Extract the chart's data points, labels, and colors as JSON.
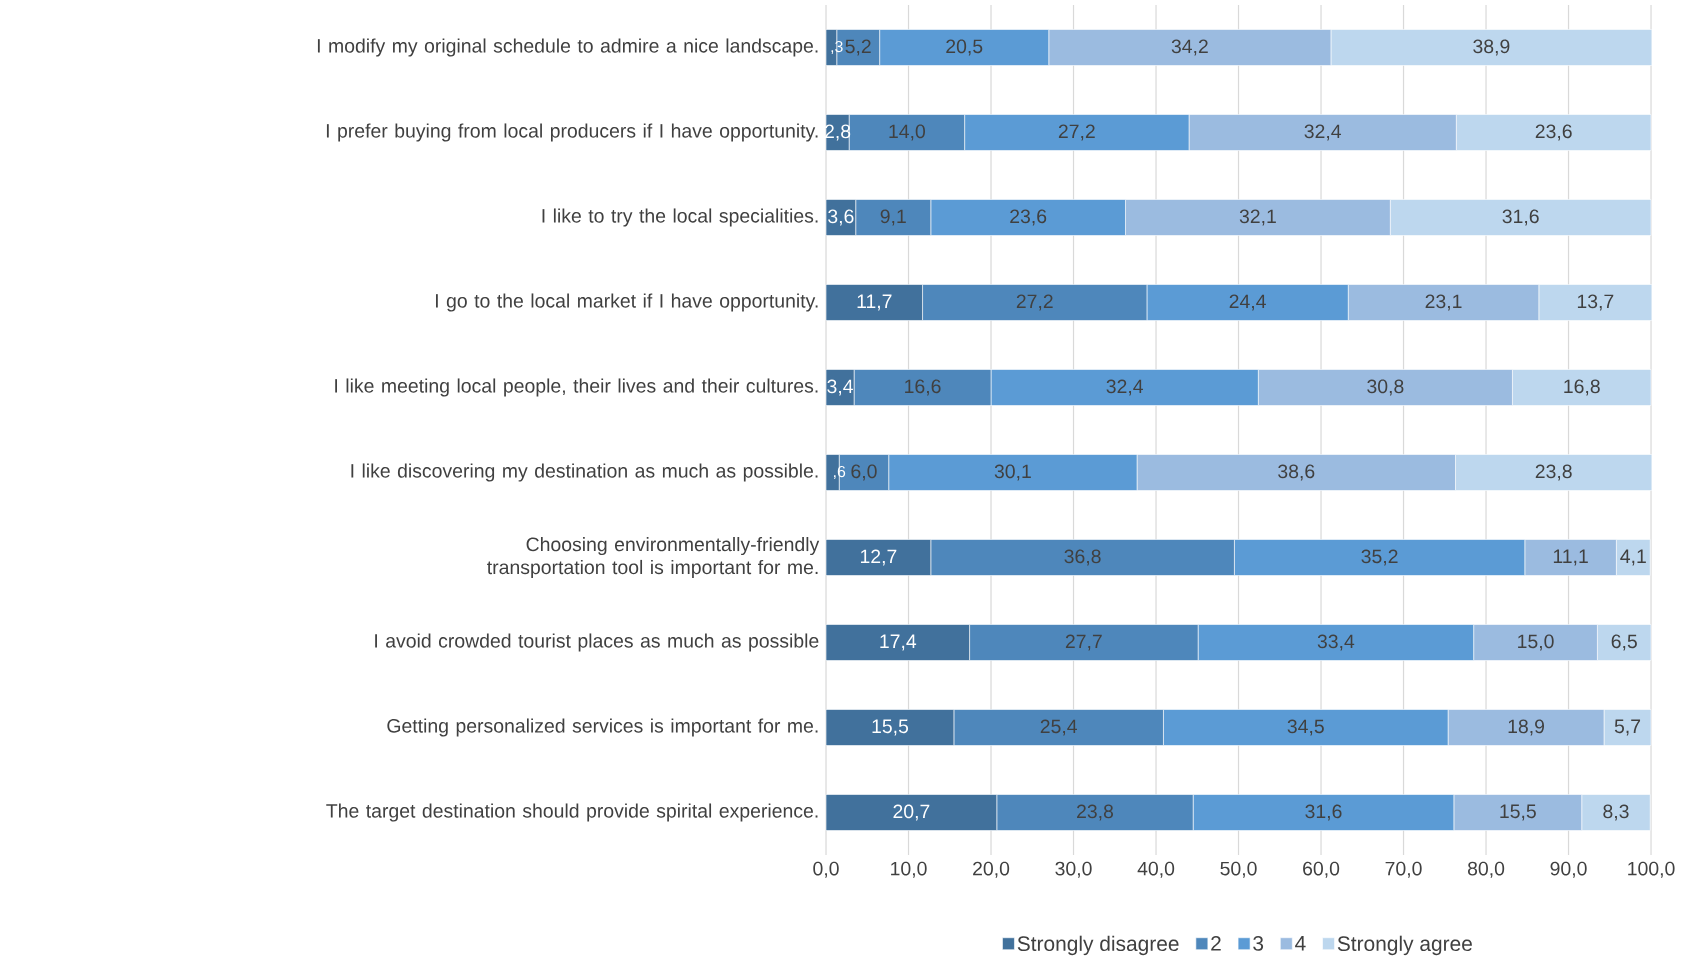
{
  "chart_data": {
    "type": "bar",
    "orientation": "horizontal",
    "stacked": true,
    "categories": [
      "I modify my original schedule to admire a nice landscape.",
      "I prefer buying from local producers if I have opportunity.",
      "I like to try the local specialities.",
      "I go to the local market if I have opportunity.",
      "I like meeting local people, their lives and their cultures.",
      "I like discovering my destination as much as possible.",
      "Choosing environmentally-friendly transportation tool is important for me.",
      "I avoid crowded tourist places as much as possible",
      "Getting personalized services is important for me.",
      "The target destination should provide spirital experience."
    ],
    "series": [
      {
        "name": "Strongly disagree",
        "color": "#41719c",
        "values": [
          1.3,
          2.8,
          3.6,
          11.7,
          3.4,
          1.6,
          12.7,
          17.4,
          15.5,
          20.7
        ],
        "value_labels": [
          null,
          "2,8",
          "3,6",
          "11,7",
          "3,4",
          null,
          "12,7",
          "17,4",
          "15,5",
          "20,7"
        ]
      },
      {
        "name": "2",
        "color": "#4e87bb",
        "values": [
          5.2,
          14.0,
          9.1,
          27.2,
          16.6,
          6.0,
          36.8,
          27.7,
          25.4,
          23.8
        ],
        "value_labels": [
          "5,2",
          "14,0",
          "9,1",
          "27,2",
          "16,6",
          "6,0",
          "36,8",
          "27,7",
          "25,4",
          "23,8"
        ]
      },
      {
        "name": "3",
        "color": "#5b9bd5",
        "values": [
          20.5,
          27.2,
          23.6,
          24.4,
          32.4,
          30.1,
          35.2,
          33.4,
          34.5,
          31.6
        ],
        "value_labels": [
          "20,5",
          "27,2",
          "23,6",
          "24,4",
          "32,4",
          "30,1",
          "35,2",
          "33,4",
          "34,5",
          "31,6"
        ]
      },
      {
        "name": "4",
        "color": "#9bbbe0",
        "values": [
          34.2,
          32.4,
          32.1,
          23.1,
          30.8,
          38.6,
          11.1,
          15.0,
          18.9,
          15.5
        ],
        "value_labels": [
          "34,2",
          "32,4",
          "32,1",
          "23,1",
          "30,8",
          "38,6",
          "11,1",
          "15,0",
          "18,9",
          "15,5"
        ]
      },
      {
        "name": "Strongly agree",
        "color": "#bdd7ee",
        "values": [
          38.9,
          23.6,
          31.6,
          13.7,
          16.8,
          23.8,
          4.1,
          6.5,
          5.7,
          8.3
        ],
        "value_labels": [
          "38,9",
          "23,6",
          "31,6",
          "13,7",
          "16,8",
          "23,8",
          "4,1",
          "6,5",
          "5,7",
          "8,3"
        ]
      }
    ],
    "xlim": [
      0,
      100
    ],
    "xticks": [
      {
        "value": 0,
        "label": "0,0"
      },
      {
        "value": 10,
        "label": "10,0"
      },
      {
        "value": 20,
        "label": "20,0"
      },
      {
        "value": 30,
        "label": "30,0"
      },
      {
        "value": 40,
        "label": "40,0"
      },
      {
        "value": 50,
        "label": "50,0"
      },
      {
        "value": 60,
        "label": "60,0"
      },
      {
        "value": 70,
        "label": "70,0"
      },
      {
        "value": 80,
        "label": "80,0"
      },
      {
        "value": 90,
        "label": "90,0"
      },
      {
        "value": 100,
        "label": "100,0"
      }
    ],
    "annotations": [
      {
        "text": ",3",
        "x": 1.3,
        "y": "I modify my original schedule to admire a nice landscape."
      },
      {
        "text": ",6",
        "x": 1.6,
        "y": "I like discovering my destination as much as possible."
      }
    ],
    "grid": "x",
    "legend": "bottom"
  }
}
